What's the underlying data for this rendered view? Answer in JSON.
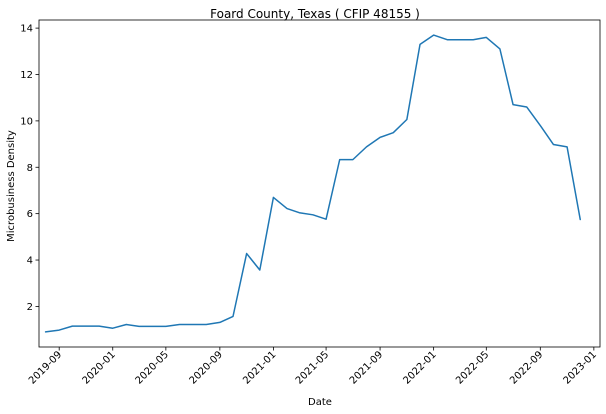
{
  "chart_data": {
    "type": "line",
    "title": "Foard County, Texas ( CFIP 48155 )",
    "xlabel": "Date",
    "ylabel": "Microbusiness Density",
    "series_color": "#1f77b4",
    "grid": false,
    "legend": "none",
    "xlim": [
      "2019-07-17",
      "2023-01-15"
    ],
    "ylim": [
      0.25,
      14.35
    ],
    "x_ticks": [
      "2019-09",
      "2020-01",
      "2020-05",
      "2020-09",
      "2021-01",
      "2021-05",
      "2021-09",
      "2022-01",
      "2022-05",
      "2022-09",
      "2023-01"
    ],
    "y_ticks": [
      2,
      4,
      6,
      8,
      10,
      12,
      14
    ],
    "x": [
      "2019-08-01",
      "2019-09-01",
      "2019-10-01",
      "2019-11-01",
      "2019-12-01",
      "2020-01-01",
      "2020-02-01",
      "2020-03-01",
      "2020-04-01",
      "2020-05-01",
      "2020-06-01",
      "2020-07-01",
      "2020-08-01",
      "2020-09-01",
      "2020-10-01",
      "2020-11-01",
      "2020-12-01",
      "2021-01-01",
      "2021-02-01",
      "2021-03-01",
      "2021-04-01",
      "2021-05-01",
      "2021-06-01",
      "2021-07-01",
      "2021-08-01",
      "2021-09-01",
      "2021-10-01",
      "2021-11-01",
      "2021-12-01",
      "2022-01-01",
      "2022-02-01",
      "2022-03-01",
      "2022-04-01",
      "2022-05-01",
      "2022-06-01",
      "2022-07-01",
      "2022-08-01",
      "2022-09-01",
      "2022-10-01",
      "2022-11-01",
      "2022-12-01"
    ],
    "y": [
      0.9,
      0.98,
      1.15,
      1.15,
      1.15,
      1.06,
      1.22,
      1.14,
      1.14,
      1.14,
      1.22,
      1.22,
      1.22,
      1.31,
      1.57,
      4.28,
      3.57,
      6.7,
      6.22,
      6.04,
      5.95,
      5.76,
      8.33,
      8.33,
      8.88,
      9.29,
      9.49,
      10.06,
      13.3,
      13.7,
      13.5,
      13.5,
      13.5,
      13.6,
      13.1,
      10.7,
      10.6,
      9.8,
      8.98,
      8.88,
      5.75
    ]
  }
}
